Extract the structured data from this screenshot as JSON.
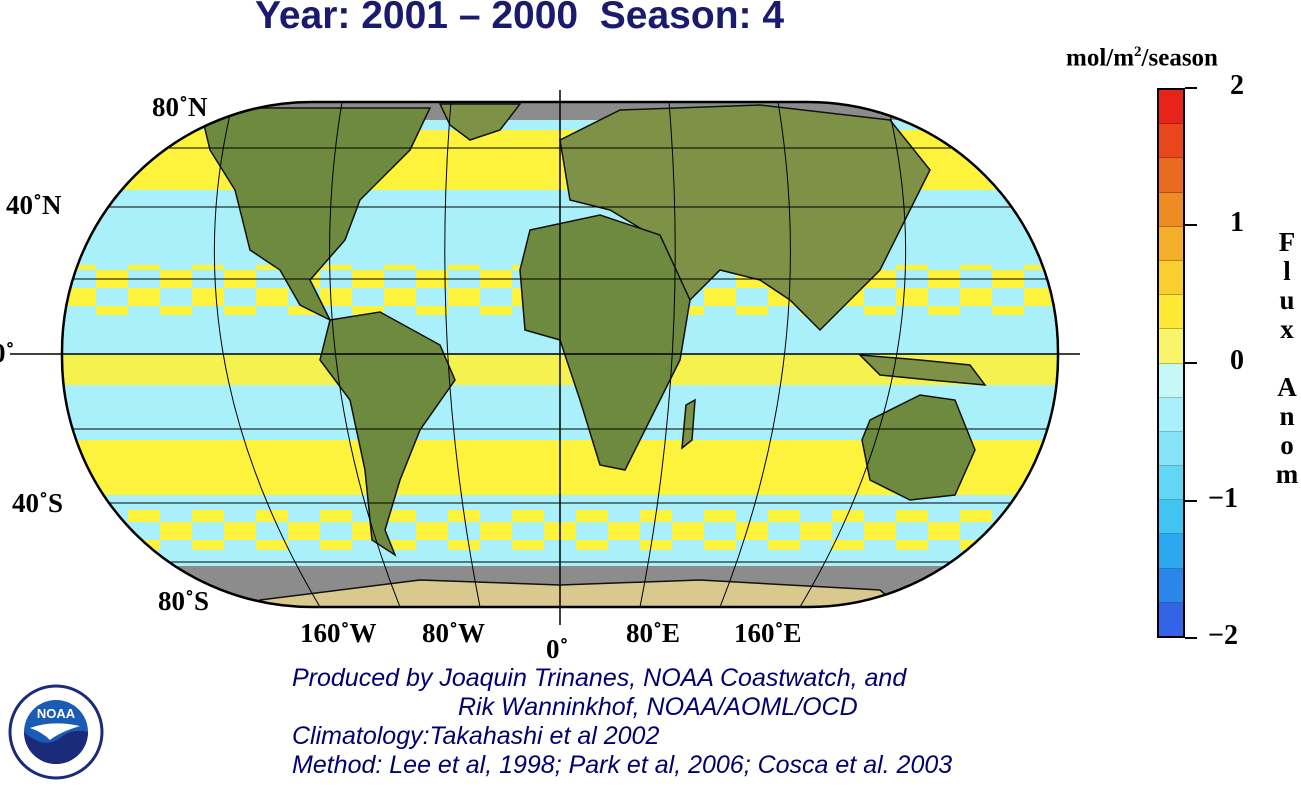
{
  "title": "Year: 2001 – 2000  Season: 4",
  "units_main": "mol/m",
  "units_sup": "2",
  "units_tail": "/season",
  "colorbar": {
    "label_vertical": "F\nl\nu\nx\n \nA\nn\no\nm",
    "ticks": [
      "2",
      "1",
      "0",
      "−1",
      "−2"
    ],
    "colors": [
      "#e8231a",
      "#e9461c",
      "#ea6a1f",
      "#ee8c24",
      "#f3ae2a",
      "#f8cf2f",
      "#fde933",
      "#f9f56a",
      "#c6f8f8",
      "#a8f0fa",
      "#86e4f8",
      "#62d6f5",
      "#40c4f2",
      "#2ca8ef",
      "#2b86ea",
      "#3364e6"
    ]
  },
  "map": {
    "lat_labels": [
      "80˚N",
      "40˚N",
      "0˚",
      "40˚S",
      "80˚S"
    ],
    "lon_labels": [
      "160˚W",
      "80˚W",
      "0˚",
      "80˚E",
      "160˚E"
    ],
    "colors": {
      "ocean_neg": "#aaf0fa",
      "ocean_pos": "#fdf23c",
      "land": "#6e8a3e",
      "nodata": "#8c8c8c"
    }
  },
  "credits": {
    "line1": "Produced by Joaquin Trinanes, NOAA Coastwatch, and",
    "line2": "Rik Wanninkhof, NOAA/AOML/OCD",
    "line3": "Climatology:Takahashi et al 2002",
    "line4": "Method: Lee et al, 1998; Park et al, 2006; Cosca et al. 2003"
  },
  "logo": {
    "text": "NOAA"
  }
}
